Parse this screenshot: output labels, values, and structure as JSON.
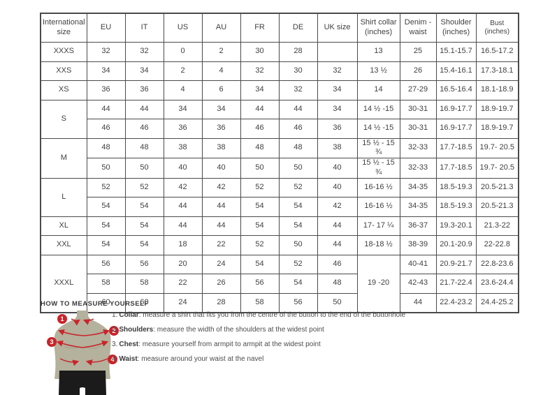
{
  "colors": {
    "accent_red": "#c9242b",
    "mannequin": "#b4b19c",
    "shorts": "#1b1b1b",
    "table_border": "#4a4a4c",
    "text": "#414042"
  },
  "table": {
    "headers": [
      "International size",
      "EU",
      "IT",
      "US",
      "AU",
      "FR",
      "DE",
      "UK size",
      "Shirt collar (inches)",
      "Denim - waist",
      "Shoulder (inches)",
      "Bust (inches)"
    ],
    "groups": [
      {
        "label": "XXXS",
        "rows": [
          [
            "32",
            "32",
            "0",
            "2",
            "30",
            "28",
            "",
            "13",
            "25",
            "15.1-15.7",
            "16.5-17.2"
          ]
        ]
      },
      {
        "label": "XXS",
        "rows": [
          [
            "34",
            "34",
            "2",
            "4",
            "32",
            "30",
            "32",
            "13 ½",
            "26",
            "15.4-16.1",
            "17.3-18.1"
          ]
        ]
      },
      {
        "label": "XS",
        "rows": [
          [
            "36",
            "36",
            "4",
            "6",
            "34",
            "32",
            "34",
            "14",
            "27-29",
            "16.5-16.4",
            "18.1-18.9"
          ]
        ]
      },
      {
        "label": "S",
        "rows": [
          [
            "44",
            "44",
            "34",
            "34",
            "44",
            "44",
            "34",
            "14 ½ -15",
            "30-31",
            "16.9-17.7",
            "18.9-19.7"
          ],
          [
            "46",
            "46",
            "36",
            "36",
            "46",
            "46",
            "36",
            "14 ½ -15",
            "30-31",
            "16.9-17.7",
            "18.9-19.7"
          ]
        ]
      },
      {
        "label": "M",
        "rows": [
          [
            "48",
            "48",
            "38",
            "38",
            "48",
            "48",
            "38",
            "15 ½ - 15 ¾",
            "32-33",
            "17.7-18.5",
            "19.7- 20.5"
          ],
          [
            "50",
            "50",
            "40",
            "40",
            "50",
            "50",
            "40",
            "15 ½ - 15 ¾",
            "32-33",
            "17.7-18.5",
            "19.7- 20.5"
          ]
        ]
      },
      {
        "label": "L",
        "rows": [
          [
            "52",
            "52",
            "42",
            "42",
            "52",
            "52",
            "40",
            "16-16 ½",
            "34-35",
            "18.5-19.3",
            "20.5-21.3"
          ],
          [
            "54",
            "54",
            "44",
            "44",
            "54",
            "54",
            "42",
            "16-16 ½",
            "34-35",
            "18.5-19.3",
            "20.5-21.3"
          ]
        ]
      },
      {
        "label": "XL",
        "rows": [
          [
            "54",
            "54",
            "44",
            "44",
            "54",
            "54",
            "44",
            "17- 17 ¼",
            "36-37",
            "19.3-20.1",
            "21.3-22"
          ]
        ]
      },
      {
        "label": "XXL",
        "rows": [
          [
            "54",
            "54",
            "18",
            "22",
            "52",
            "50",
            "44",
            "18-18 ½",
            "38-39",
            "20.1-20.9",
            "22-22.8"
          ]
        ]
      },
      {
        "label": "XXXL",
        "collar_merged": "19 -20",
        "rows": [
          [
            "56",
            "56",
            "20",
            "24",
            "54",
            "52",
            "46",
            "40-41",
            "20.9-21.7",
            "22.8-23.6"
          ],
          [
            "58",
            "58",
            "22",
            "26",
            "56",
            "54",
            "48",
            "42-43",
            "21.7-22.4",
            "23.6-24.4"
          ],
          [
            "60",
            "60",
            "24",
            "28",
            "58",
            "56",
            "50",
            "44",
            "22.4-23.2",
            "24.4-25.2"
          ]
        ]
      }
    ]
  },
  "measure": {
    "heading": "HOW TO MEASURE YOURSELF",
    "markers": [
      "1",
      "2",
      "3",
      "4"
    ],
    "steps": [
      {
        "num": "1.",
        "label": "Collar",
        "text": ": measure a shirt that fits you from the centre of the button to the end of the buttonhole"
      },
      {
        "num": "2.",
        "label": "Shoulders",
        "text": ": measure the width of the shoulders at the widest point"
      },
      {
        "num": "3.",
        "label": "Chest",
        "text": ": measure yourself from armpit to armpit at the widest point"
      },
      {
        "num": "4.",
        "label": "Waist",
        "text": ": measure around your waist at the navel"
      }
    ]
  }
}
